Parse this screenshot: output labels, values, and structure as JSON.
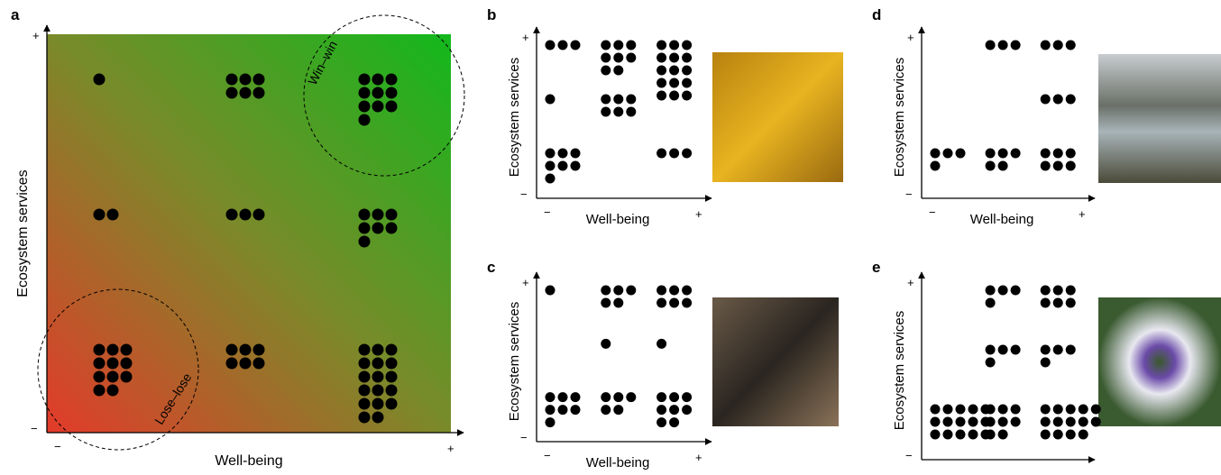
{
  "x_label": "Well-being",
  "y_label": "Ecosystem services",
  "plus": "+",
  "minus": "−",
  "panels": [
    {
      "letter": "a",
      "counts": [
        [
          1,
          6,
          10
        ],
        [
          2,
          3,
          7
        ],
        [
          11,
          6,
          17
        ]
      ],
      "annotations": [
        "Win–win",
        "Lose–lose"
      ]
    },
    {
      "letter": "b",
      "counts": [
        [
          3,
          8,
          15
        ],
        [
          1,
          6,
          0
        ],
        [
          7,
          0,
          3
        ]
      ]
    },
    {
      "letter": "c",
      "counts": [
        [
          1,
          5,
          6
        ],
        [
          0,
          1,
          1
        ],
        [
          7,
          5,
          8
        ]
      ]
    },
    {
      "letter": "d",
      "counts": [
        [
          0,
          3,
          3
        ],
        [
          0,
          0,
          3
        ],
        [
          4,
          5,
          6
        ]
      ]
    },
    {
      "letter": "e",
      "counts": [
        [
          0,
          4,
          6
        ],
        [
          0,
          4,
          4
        ],
        [
          15,
          8,
          14
        ]
      ]
    }
  ]
}
